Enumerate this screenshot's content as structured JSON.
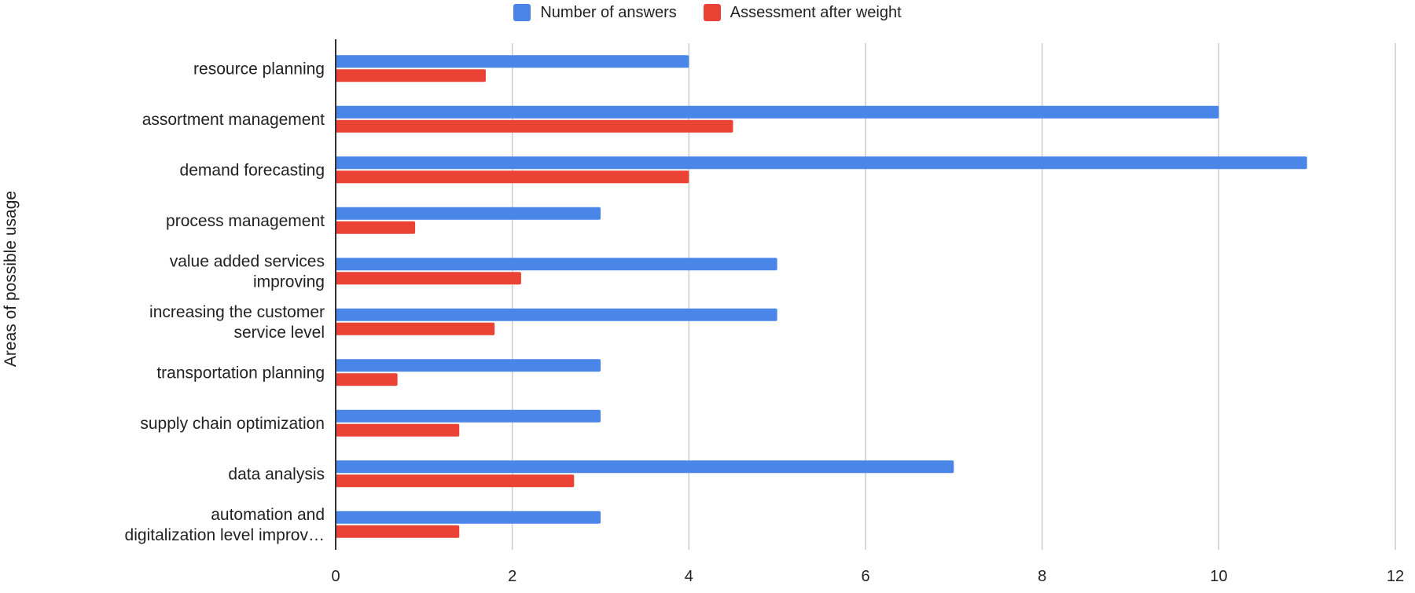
{
  "chart_data": {
    "type": "bar",
    "orientation": "horizontal",
    "title": "",
    "xlabel": "",
    "ylabel": "Areas of possible usage",
    "xlim": [
      0,
      12
    ],
    "xticks": [
      0,
      2,
      4,
      6,
      8,
      10,
      12
    ],
    "grid": true,
    "legend_position": "top",
    "categories": [
      [
        "resource planning"
      ],
      [
        "assortment management"
      ],
      [
        "demand forecasting"
      ],
      [
        "process management"
      ],
      [
        "value added services",
        "improving"
      ],
      [
        "increasing the customer",
        "service level"
      ],
      [
        "transportation planning"
      ],
      [
        "supply chain optimization"
      ],
      [
        "data analysis"
      ],
      [
        "automation and",
        "digitalization level improv…"
      ]
    ],
    "series": [
      {
        "name": "Number of answers",
        "color": "#4a86e8",
        "values": [
          4,
          10,
          11,
          3,
          5,
          5,
          3,
          3,
          7,
          3
        ]
      },
      {
        "name": "Assessment after weight",
        "color": "#ea4335",
        "values": [
          1.7,
          4.5,
          4.0,
          0.9,
          2.1,
          1.8,
          0.7,
          1.4,
          2.7,
          1.4
        ]
      }
    ]
  }
}
